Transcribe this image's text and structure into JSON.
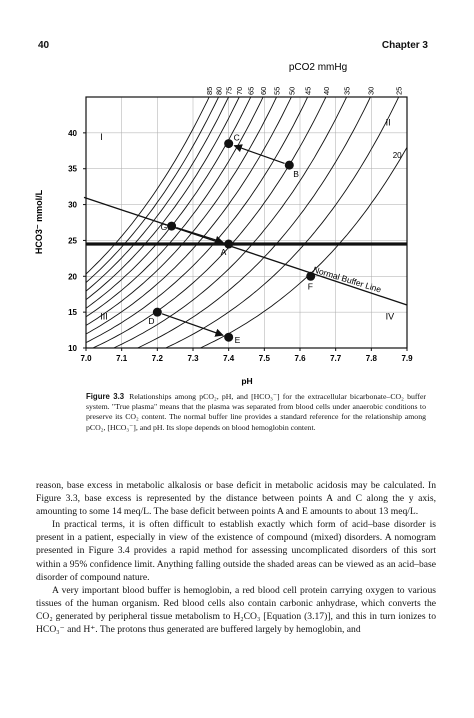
{
  "header": {
    "page_number": "40",
    "chapter": "Chapter 3"
  },
  "chart_data": {
    "type": "line",
    "title": "",
    "top_axis_label": "pCO2 mmHg",
    "xlabel": "pH",
    "ylabel": "HCO3⁻ mmol/L",
    "xlim": [
      7.0,
      7.9
    ],
    "ylim": [
      10,
      45
    ],
    "x_ticks": [
      "7.0",
      "7.1",
      "7.2",
      "7.3",
      "7.4",
      "7.5",
      "7.6",
      "7.7",
      "7.8",
      "7.9"
    ],
    "y_ticks": [
      "10",
      "15",
      "20",
      "25",
      "30",
      "35",
      "40"
    ],
    "isobars_pco2": [
      85,
      80,
      75,
      70,
      65,
      60,
      55,
      50,
      45,
      40,
      35,
      30,
      25,
      20
    ],
    "isobar_20_label": "20",
    "points": [
      {
        "label": "A",
        "ph": 7.4,
        "hco3": 24.5
      },
      {
        "label": "B",
        "ph": 7.57,
        "hco3": 35.5
      },
      {
        "label": "C",
        "ph": 7.4,
        "hco3": 38.5
      },
      {
        "label": "D",
        "ph": 7.2,
        "hco3": 15.0
      },
      {
        "label": "E",
        "ph": 7.4,
        "hco3": 11.5
      },
      {
        "label": "F",
        "ph": 7.63,
        "hco3": 20.0
      },
      {
        "label": "G",
        "ph": 7.24,
        "hco3": 27.0
      }
    ],
    "arrows": [
      [
        "B",
        "C"
      ],
      [
        "G",
        "A"
      ],
      [
        "D",
        "E"
      ]
    ],
    "normal_bicarbonate": 24.5,
    "buffer_line": {
      "label": "Normal Buffer Line",
      "from": {
        "ph": 7.0,
        "hco3": 31.0
      },
      "to": {
        "ph": 7.9,
        "hco3": 16.0
      }
    },
    "regions": [
      "I",
      "II",
      "III",
      "IV"
    ]
  },
  "caption": {
    "label": "Figure 3.3",
    "text": "Relationships among pCO₂, pH, and [HCO₃⁻] for the extracellular bicarbonate–CO₂ buffer system. \"True plasma\" means that the plasma was separated from blood cells under anaerobic conditions to preserve its CO₂ content. The normal buffer line provides a standard reference for the relationship among pCO₂, [HCO₃⁻], and pH. Its slope depends on blood hemoglobin content."
  },
  "body": {
    "p1": "reason, base excess in metabolic alkalosis or base deficit in metabolic acidosis may be calculated. In Figure 3.3, base excess is represented by the distance between points A and C along the y axis, amounting to some 14 meq/L. The base deficit between points A and E amounts to about 13 meq/L.",
    "p2": "In practical terms, it is often difficult to establish exactly which form of acid–base disorder is present in a patient, especially in view of the existence of compound (mixed) disorders. A nomogram presented in Figure 3.4 provides a rapid method for assessing uncomplicated disorders of this sort within a 95% confidence limit. Anything falling outside the shaded areas can be viewed as an acid–base disorder of compound nature.",
    "p3": "A very important blood buffer is hemoglobin, a red blood cell protein carrying oxygen to various tissues of the human organism. Red blood cells also contain carbonic anhydrase, which converts the CO₂ generated by peripheral tissue metabolism to H₂CO₃ [Equation (3.17)], and this in turn ionizes to HCO₃⁻ and H⁺. The protons thus generated are buffered largely by hemoglobin, and"
  }
}
